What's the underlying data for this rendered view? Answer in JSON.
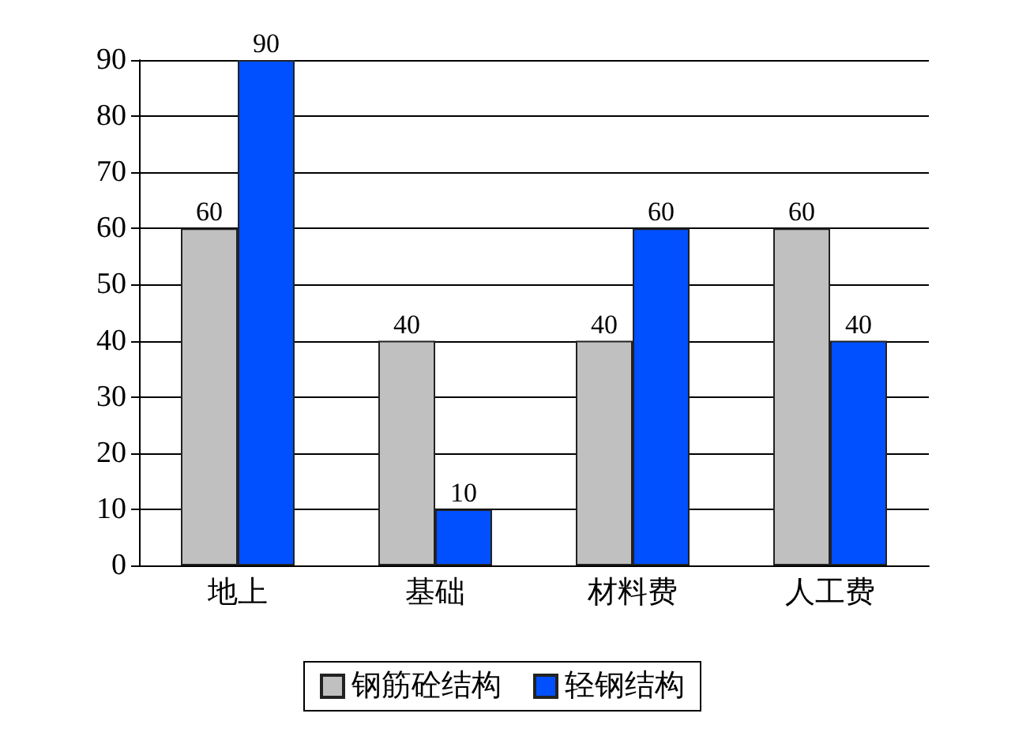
{
  "chart_data": {
    "type": "bar",
    "categories": [
      "地上",
      "基础",
      "材料费",
      "人工费"
    ],
    "series": [
      {
        "name": "钢筋砼结构",
        "color": "#c0c0c0",
        "values": [
          60,
          40,
          40,
          60
        ]
      },
      {
        "name": "轻钢结构",
        "color": "#0050ff",
        "values": [
          90,
          10,
          60,
          40
        ]
      }
    ],
    "ylim": [
      0,
      90
    ],
    "yticks": [
      0,
      10,
      20,
      30,
      40,
      50,
      60,
      70,
      80,
      90
    ],
    "grid": "y",
    "legend": "bottom",
    "data_labels": true
  }
}
